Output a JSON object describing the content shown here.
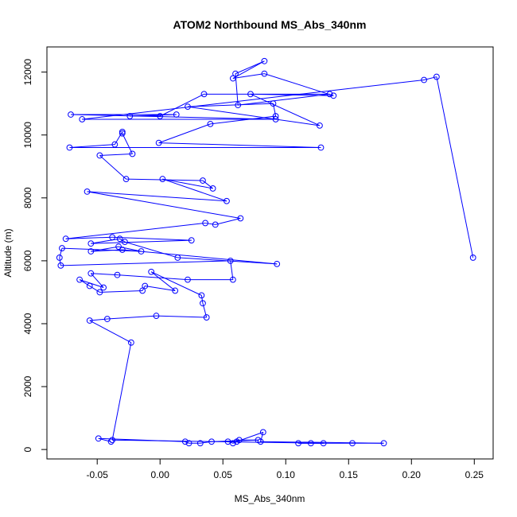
{
  "chart_data": {
    "type": "line",
    "title": "ATOM2 Northbound MS_Abs_340nm",
    "xlabel": "MS_Abs_340nm",
    "ylabel": "Altitude (m)",
    "xlim": [
      -0.09,
      0.265
    ],
    "ylim": [
      -300,
      12800
    ],
    "x_ticks": [
      -0.05,
      0.0,
      0.05,
      0.1,
      0.15,
      0.2,
      0.25
    ],
    "x_tick_labels": [
      "-0.05",
      "0.00",
      "0.05",
      "0.10",
      "0.15",
      "0.20",
      "0.25"
    ],
    "y_ticks": [
      0,
      2000,
      4000,
      6000,
      8000,
      10000,
      12000
    ],
    "y_tick_labels": [
      "0",
      "2000",
      "4000",
      "6000",
      "8000",
      "10000",
      "12000"
    ],
    "grid": false,
    "series_color": "#0000ff",
    "marker": "open-circle",
    "series": [
      {
        "points": [
          [
            0.249,
            6100
          ],
          [
            0.22,
            11850
          ],
          [
            0.21,
            11750
          ],
          [
            -0.062,
            10500
          ],
          [
            0.092,
            10500
          ],
          [
            -0.071,
            10650
          ],
          [
            0.013,
            10650
          ],
          [
            -0.024,
            10600
          ],
          [
            0.0,
            10600
          ],
          [
            0.035,
            11300
          ],
          [
            0.135,
            11300
          ],
          [
            0.062,
            10950
          ],
          [
            0.06,
            11950
          ],
          [
            0.083,
            12350
          ],
          [
            0.058,
            11800
          ],
          [
            0.083,
            11950
          ],
          [
            0.138,
            11250
          ],
          [
            0.072,
            11300
          ],
          [
            0.127,
            10300
          ],
          [
            0.022,
            10900
          ],
          [
            0.09,
            11000
          ],
          [
            0.092,
            10600
          ],
          [
            0.04,
            10350
          ],
          [
            -0.001,
            9750
          ],
          [
            0.128,
            9600
          ],
          [
            -0.072,
            9600
          ],
          [
            -0.036,
            9700
          ],
          [
            -0.03,
            10100
          ],
          [
            -0.03,
            10050
          ],
          [
            -0.022,
            9400
          ],
          [
            -0.048,
            9350
          ],
          [
            -0.027,
            8600
          ],
          [
            0.034,
            8550
          ],
          [
            0.042,
            8300
          ],
          [
            0.002,
            8600
          ],
          [
            0.053,
            7900
          ],
          [
            -0.058,
            8200
          ],
          [
            0.064,
            7350
          ],
          [
            0.044,
            7150
          ],
          [
            0.036,
            7200
          ],
          [
            -0.075,
            6700
          ],
          [
            -0.038,
            6750
          ],
          [
            0.025,
            6650
          ],
          [
            -0.055,
            6550
          ],
          [
            -0.032,
            6700
          ],
          [
            -0.028,
            6600
          ],
          [
            0.014,
            6100
          ],
          [
            0.093,
            5900
          ],
          [
            -0.03,
            6350
          ],
          [
            -0.055,
            6300
          ],
          [
            -0.033,
            6450
          ],
          [
            -0.015,
            6300
          ],
          [
            -0.078,
            6400
          ],
          [
            -0.08,
            6100
          ],
          [
            -0.079,
            5850
          ],
          [
            0.056,
            6000
          ],
          [
            0.058,
            5400
          ],
          [
            0.022,
            5400
          ],
          [
            -0.034,
            5550
          ],
          [
            -0.055,
            5600
          ],
          [
            -0.045,
            5150
          ],
          [
            -0.064,
            5400
          ],
          [
            -0.056,
            5200
          ],
          [
            -0.048,
            5000
          ],
          [
            -0.014,
            5050
          ],
          [
            -0.012,
            5200
          ],
          [
            0.012,
            5050
          ],
          [
            -0.007,
            5650
          ],
          [
            0.033,
            4900
          ],
          [
            0.034,
            4650
          ],
          [
            0.037,
            4200
          ],
          [
            -0.003,
            4250
          ],
          [
            -0.042,
            4150
          ],
          [
            -0.056,
            4100
          ],
          [
            -0.023,
            3400
          ],
          [
            -0.038,
            300
          ],
          [
            0.13,
            200
          ],
          [
            0.12,
            200
          ],
          [
            0.11,
            200
          ],
          [
            0.153,
            200
          ],
          [
            0.178,
            200
          ],
          [
            0.08,
            250
          ],
          [
            0.082,
            550
          ],
          [
            0.061,
            250
          ],
          [
            0.058,
            200
          ],
          [
            0.054,
            250
          ],
          [
            0.063,
            300
          ],
          [
            0.078,
            300
          ],
          [
            0.041,
            250
          ],
          [
            0.032,
            200
          ],
          [
            0.023,
            200
          ],
          [
            0.02,
            250
          ],
          [
            -0.049,
            350
          ],
          [
            -0.039,
            250
          ]
        ]
      }
    ]
  }
}
